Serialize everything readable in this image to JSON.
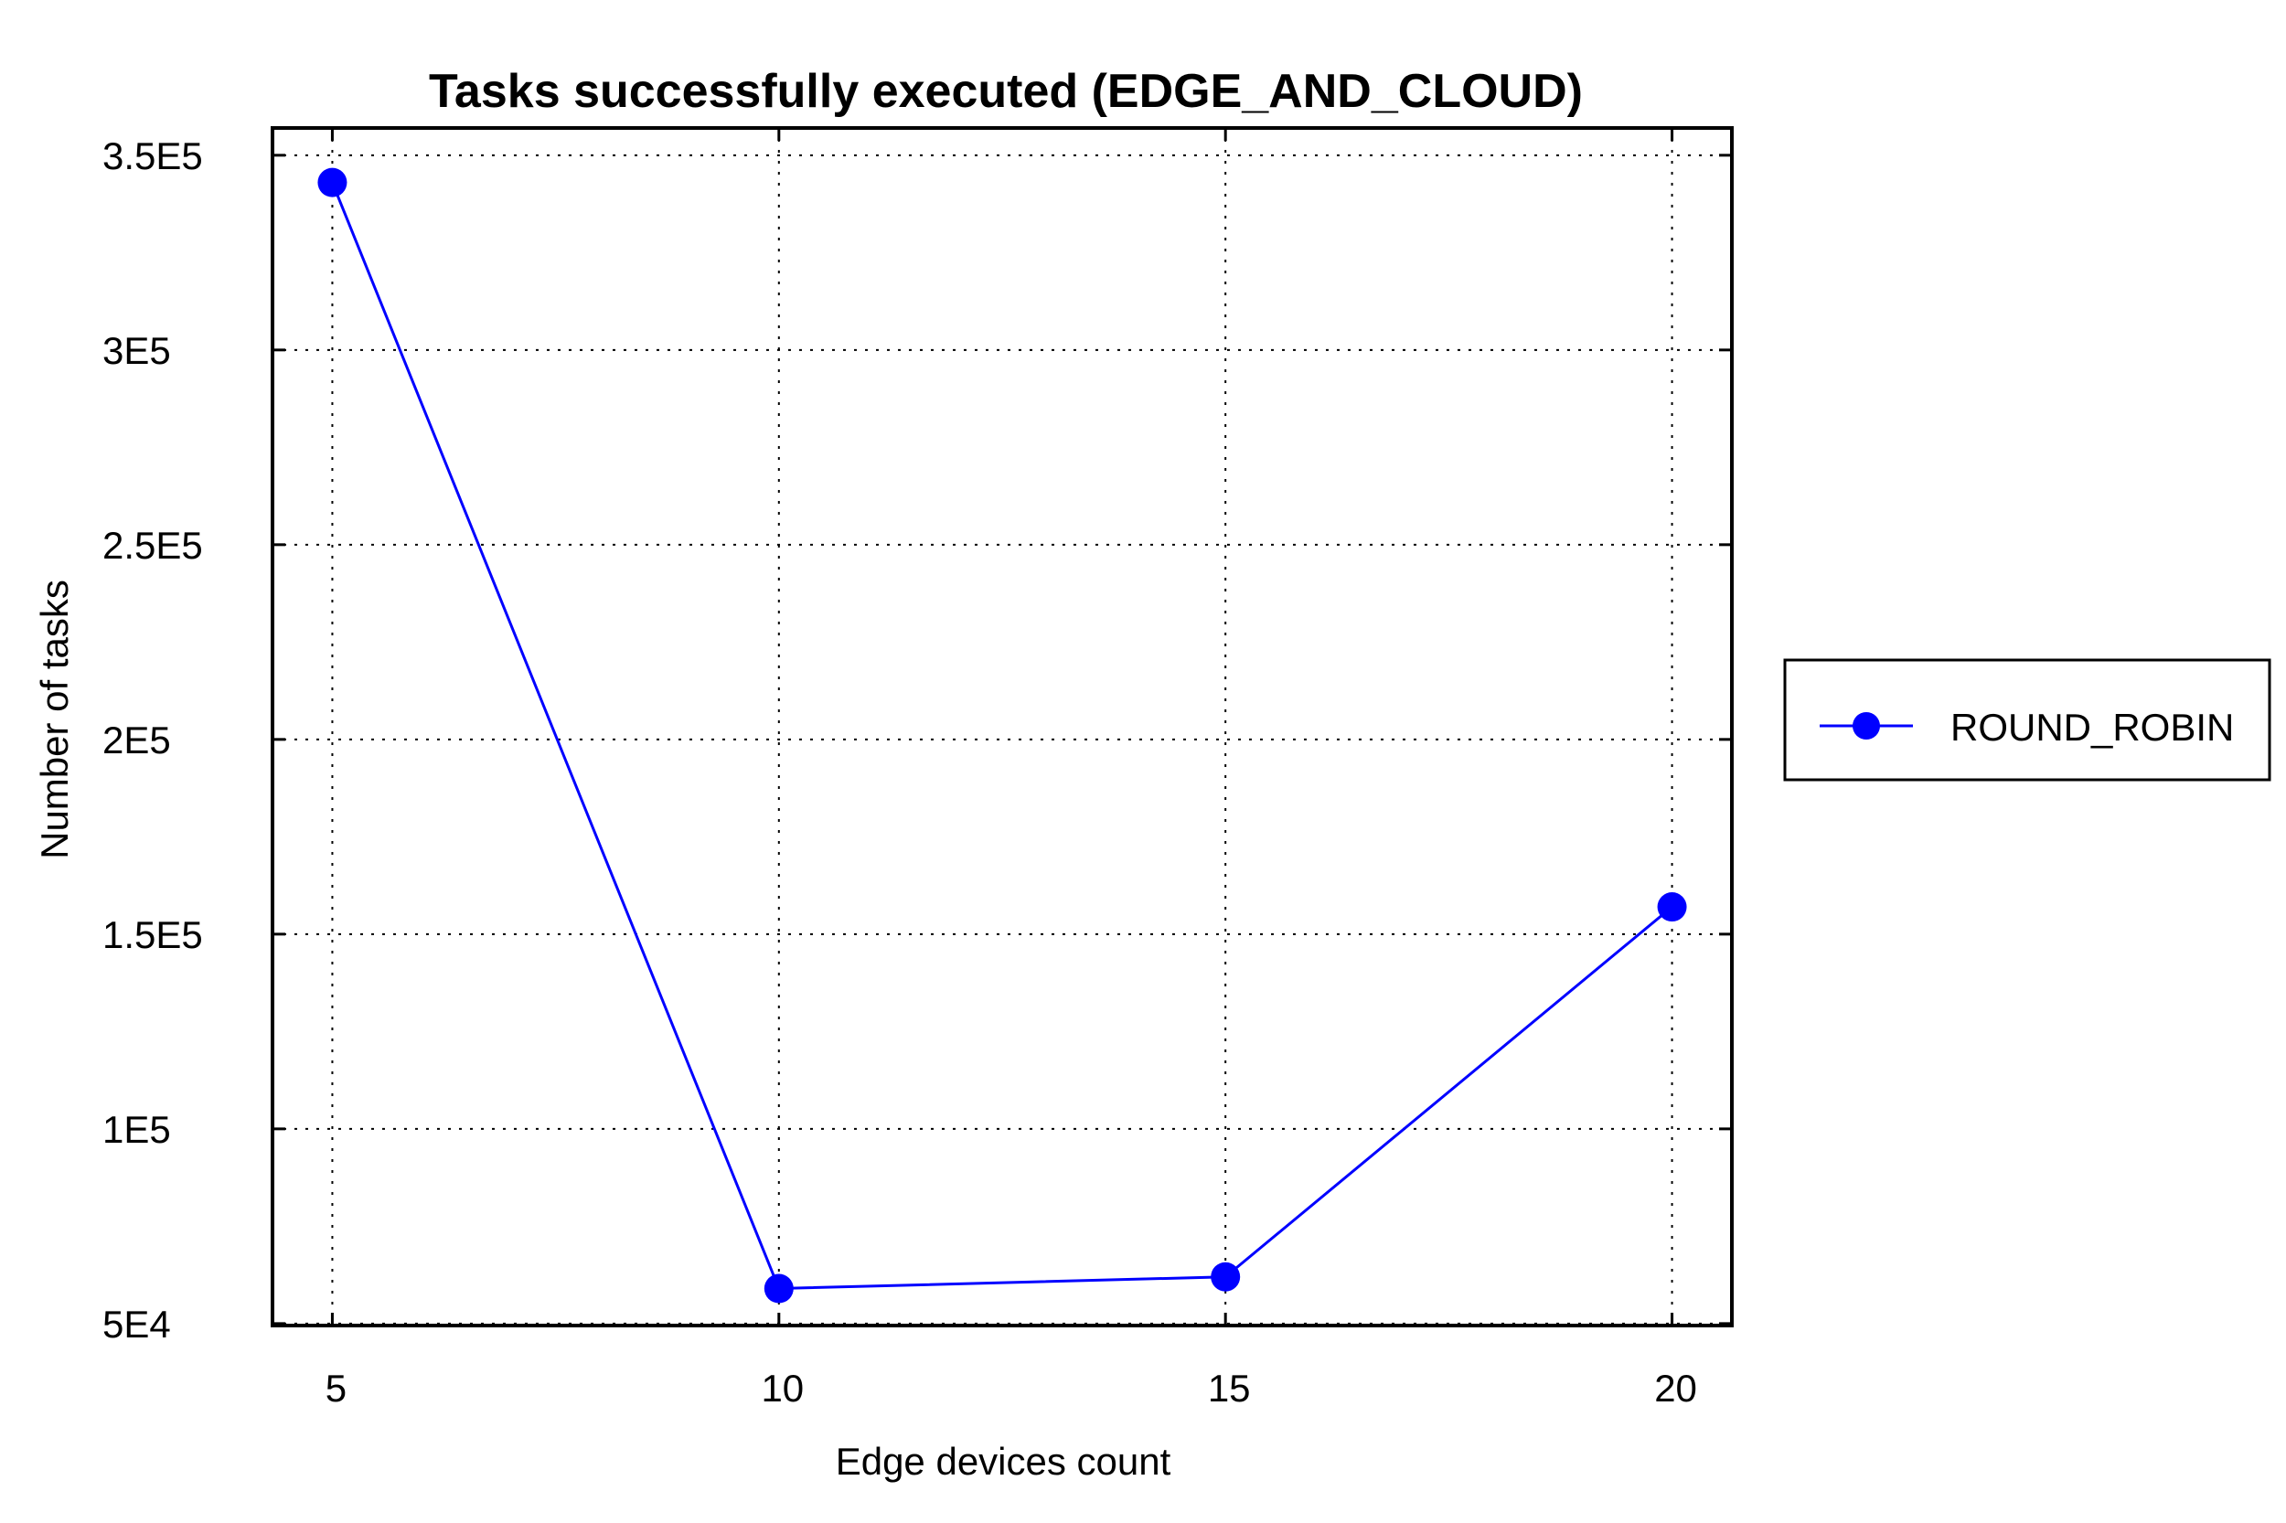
{
  "chart_data": {
    "type": "line",
    "title": "Tasks successfully executed (EDGE_AND_CLOUD)",
    "xlabel": "Edge devices count",
    "ylabel": "Number of tasks",
    "x": [
      5,
      10,
      15,
      20
    ],
    "x_tick_labels": [
      "5",
      "10",
      "15",
      "20"
    ],
    "y_tick_values": [
      50000,
      100000,
      150000,
      200000,
      250000,
      300000,
      350000
    ],
    "y_tick_labels": [
      "5E4",
      "1E5",
      "1.5E5",
      "2E5",
      "2.5E5",
      "3E5",
      "3.5E5"
    ],
    "xlim": [
      4.33,
      20.67
    ],
    "ylim": [
      49500,
      357000
    ],
    "grid": true,
    "legend_placement": "right",
    "series": [
      {
        "name": "ROUND_ROBIN",
        "color": "#0000ff",
        "marker": "circle",
        "values": [
          343000,
          59000,
          62000,
          157000
        ]
      }
    ]
  }
}
